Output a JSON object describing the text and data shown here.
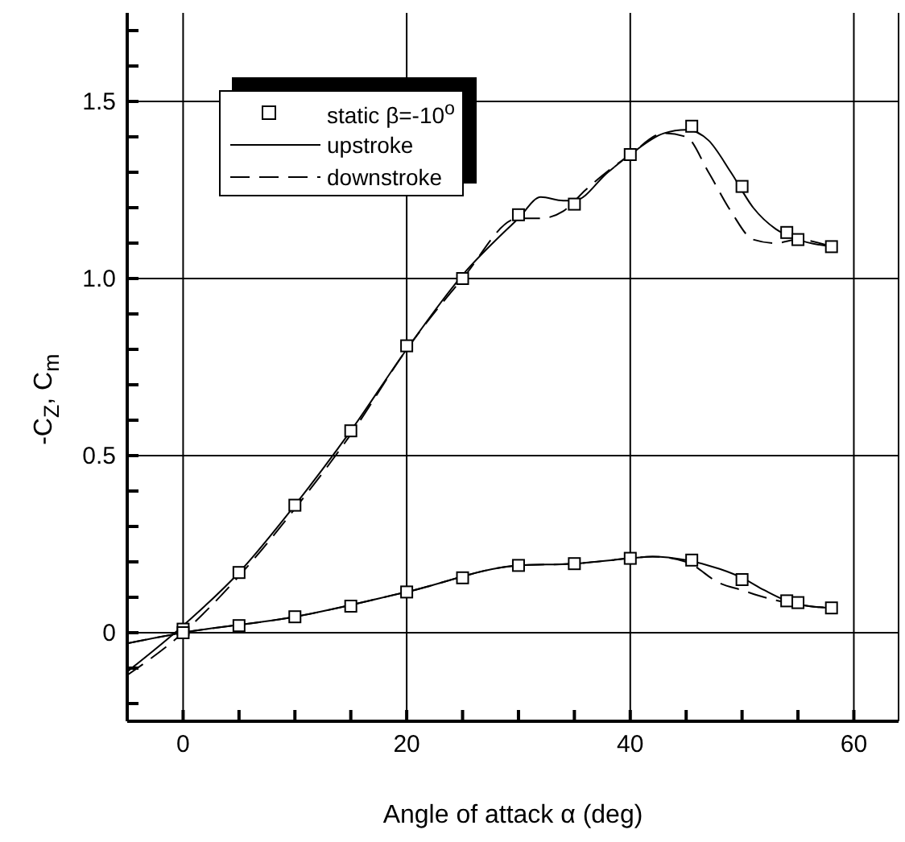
{
  "chart_data": {
    "type": "line",
    "xlabel": "Angle of attack α (deg)",
    "ylabel": "-C$_{Z}$, C$_{m}$",
    "xlim": [
      -5,
      64
    ],
    "ylim": [
      -0.25,
      1.75
    ],
    "xticks": [
      {
        "value": -5,
        "label": null
      },
      0,
      {
        "value": 5,
        "label": null
      },
      {
        "value": 10,
        "label": null
      },
      {
        "value": 15,
        "label": null
      },
      20,
      {
        "value": 25,
        "label": null
      },
      {
        "value": 30,
        "label": null
      },
      {
        "value": 35,
        "label": null
      },
      40,
      {
        "value": 45,
        "label": null
      },
      {
        "value": 50,
        "label": null
      },
      {
        "value": 55,
        "label": null
      },
      60
    ],
    "yticks": [
      {
        "value": -0.2,
        "label": null
      },
      {
        "value": -0.1,
        "label": null
      },
      0,
      {
        "value": 0.1,
        "label": null
      },
      {
        "value": 0.2,
        "label": null
      },
      {
        "value": 0.3,
        "label": null
      },
      {
        "value": 0.4,
        "label": null
      },
      0.5,
      {
        "value": 0.6,
        "label": null
      },
      {
        "value": 0.7,
        "label": null
      },
      {
        "value": 0.8,
        "label": null
      },
      {
        "value": 0.9,
        "label": null
      },
      {
        "value": 1,
        "label": "1.0"
      },
      {
        "value": 1.1,
        "label": null
      },
      {
        "value": 1.2,
        "label": null
      },
      {
        "value": 1.3,
        "label": null
      },
      {
        "value": 1.4,
        "label": null
      },
      1.5,
      {
        "value": 1.6,
        "label": null
      },
      {
        "value": 1.7,
        "label": null
      }
    ],
    "grid": true,
    "legend": "top left",
    "series": [
      {
        "type": "scatter",
        "name": "static β=-10$^{o}$",
        "color": "#000000",
        "marker": "square",
        "x": [
          0,
          5,
          10,
          15,
          20,
          25,
          30,
          35,
          40,
          45.5,
          50,
          54,
          55,
          58,
          0,
          5,
          10,
          15,
          20,
          25,
          30,
          35,
          40,
          45.5,
          50,
          54,
          55,
          58
        ],
        "values": [
          0.01,
          0.17,
          0.36,
          0.57,
          0.81,
          1.0,
          1.18,
          1.21,
          1.35,
          1.43,
          1.26,
          1.13,
          1.11,
          1.09,
          0,
          0.02,
          0.045,
          0.075,
          0.115,
          0.155,
          0.19,
          0.195,
          0.21,
          0.205,
          0.15,
          0.09,
          0.085,
          0.07
        ]
      },
      {
        "type": "line",
        "name": "upstroke",
        "color": "#000000",
        "line_style": "solid",
        "x": [
          -5,
          0,
          5,
          10,
          15,
          20,
          25,
          30,
          32,
          34,
          35,
          38,
          40,
          43,
          45,
          47,
          49,
          51,
          53,
          55,
          58
        ],
        "values": [
          -0.11,
          0.02,
          0.17,
          0.36,
          0.57,
          0.8,
          1.01,
          1.17,
          1.23,
          1.22,
          1.22,
          1.3,
          1.35,
          1.41,
          1.42,
          1.39,
          1.3,
          1.2,
          1.14,
          1.11,
          1.09
        ]
      },
      {
        "type": "line",
        "name": "downstroke",
        "color": "#000000",
        "line_style": "dashed",
        "x": [
          -5,
          0,
          5,
          10,
          15,
          20,
          25,
          30,
          32,
          34,
          36,
          40,
          43,
          45,
          47,
          49,
          51,
          53,
          55,
          58
        ],
        "values": [
          -0.12,
          0,
          0.16,
          0.35,
          0.56,
          0.8,
          1.0,
          1.17,
          1.17,
          1.19,
          1.25,
          1.35,
          1.41,
          1.4,
          1.3,
          1.19,
          1.11,
          1.1,
          1.11,
          1.09
        ]
      },
      {
        "type": "line",
        "color": "#000000",
        "line_style": "solid",
        "x": [
          -5,
          0,
          10,
          20,
          30,
          35,
          40,
          42,
          45,
          48,
          50,
          52,
          54,
          56,
          58
        ],
        "values": [
          -0.03,
          0,
          0.045,
          0.115,
          0.19,
          0.195,
          0.21,
          0.215,
          0.205,
          0.18,
          0.155,
          0.12,
          0.09,
          0.075,
          0.07
        ]
      },
      {
        "type": "line",
        "color": "#000000",
        "line_style": "dashed",
        "x": [
          -5,
          0,
          10,
          20,
          30,
          35,
          40,
          42,
          45,
          48,
          50,
          52,
          54,
          56,
          58
        ],
        "values": [
          -0.03,
          0,
          0.045,
          0.115,
          0.19,
          0.195,
          0.21,
          0.215,
          0.2,
          0.14,
          0.12,
          0.1,
          0.085,
          0.075,
          0.07
        ]
      }
    ]
  }
}
